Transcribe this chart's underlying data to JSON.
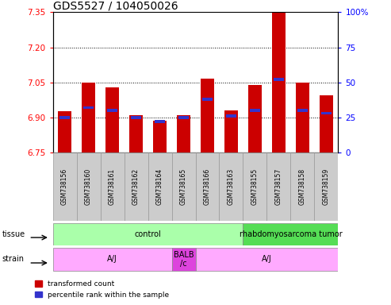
{
  "title": "GDS5527 / 104050026",
  "samples": [
    "GSM738156",
    "GSM738160",
    "GSM738161",
    "GSM738162",
    "GSM738164",
    "GSM738165",
    "GSM738166",
    "GSM738163",
    "GSM738155",
    "GSM738157",
    "GSM738158",
    "GSM738159"
  ],
  "transformed_count": [
    6.925,
    7.05,
    7.03,
    6.91,
    6.885,
    6.91,
    7.065,
    6.93,
    7.04,
    7.35,
    7.05,
    6.995
  ],
  "percentile_rank": [
    25,
    32,
    30,
    25,
    22,
    25,
    38,
    26,
    30,
    52,
    30,
    28
  ],
  "ylim_left": [
    6.75,
    7.35
  ],
  "ylim_right": [
    0,
    100
  ],
  "yticks_left": [
    6.75,
    6.9,
    7.05,
    7.2,
    7.35
  ],
  "yticks_right": [
    0,
    25,
    50,
    75,
    100
  ],
  "hlines": [
    6.9,
    7.05,
    7.2
  ],
  "bar_bottom": 6.75,
  "bar_color_red": "#cc0000",
  "bar_color_blue": "#3333cc",
  "tissue_groups": [
    {
      "label": "control",
      "start": 0,
      "end": 8,
      "color": "#aaffaa"
    },
    {
      "label": "rhabdomyosarcoma tumor",
      "start": 8,
      "end": 12,
      "color": "#55dd55"
    }
  ],
  "strain_groups": [
    {
      "label": "A/J",
      "start": 0,
      "end": 5,
      "color": "#ffaaff"
    },
    {
      "label": "BALB\n/c",
      "start": 5,
      "end": 6,
      "color": "#dd44dd"
    },
    {
      "label": "A/J",
      "start": 6,
      "end": 12,
      "color": "#ffaaff"
    }
  ],
  "legend_items": [
    {
      "color": "#cc0000",
      "label": "transformed count"
    },
    {
      "color": "#3333cc",
      "label": "percentile rank within the sample"
    }
  ],
  "title_fontsize": 10,
  "tick_fontsize": 7.5,
  "sample_fontsize": 5.5,
  "annot_fontsize": 7,
  "legend_fontsize": 6.5
}
